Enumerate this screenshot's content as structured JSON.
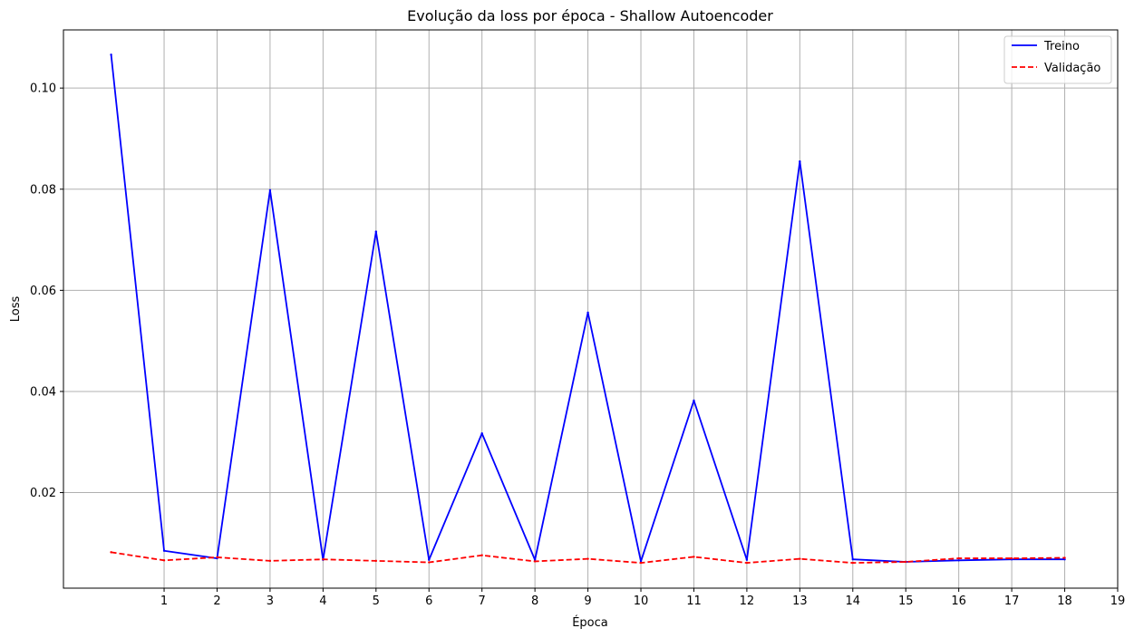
{
  "chart_data": {
    "type": "line",
    "title": "Evolução da loss por época - Shallow Autoencoder",
    "xlabel": "Época",
    "ylabel": "Loss",
    "x": [
      0,
      1,
      2,
      3,
      4,
      5,
      6,
      7,
      8,
      9,
      10,
      11,
      12,
      13,
      14,
      15,
      16,
      17,
      18
    ],
    "xticks": [
      1,
      2,
      3,
      4,
      5,
      6,
      7,
      8,
      9,
      10,
      11,
      12,
      13,
      14,
      15,
      16,
      17,
      18,
      19
    ],
    "yticks": [
      0.02,
      0.04,
      0.06,
      0.08,
      0.1
    ],
    "ytick_labels": [
      "0.02",
      "0.04",
      "0.06",
      "0.08",
      "0.10"
    ],
    "xlim": [
      -0.9,
      19.0
    ],
    "ylim": [
      0.0011,
      0.1115
    ],
    "grid": true,
    "legend_position": "top-right",
    "series": [
      {
        "name": "Treino",
        "color": "#0000ff",
        "dash": "solid",
        "values": [
          0.1066,
          0.0085,
          0.007,
          0.0798,
          0.0067,
          0.0716,
          0.0067,
          0.0317,
          0.0067,
          0.0556,
          0.0064,
          0.0382,
          0.0067,
          0.0855,
          0.0068,
          0.0063,
          0.0066,
          0.0068,
          0.0068
        ]
      },
      {
        "name": "Validação",
        "color": "#ff0000",
        "dash": "dashed",
        "values": [
          0.0082,
          0.0066,
          0.0072,
          0.0065,
          0.0068,
          0.0065,
          0.0062,
          0.0076,
          0.0064,
          0.0069,
          0.0061,
          0.0073,
          0.0061,
          0.0069,
          0.0061,
          0.0063,
          0.007,
          0.007,
          0.0071
        ]
      }
    ]
  }
}
